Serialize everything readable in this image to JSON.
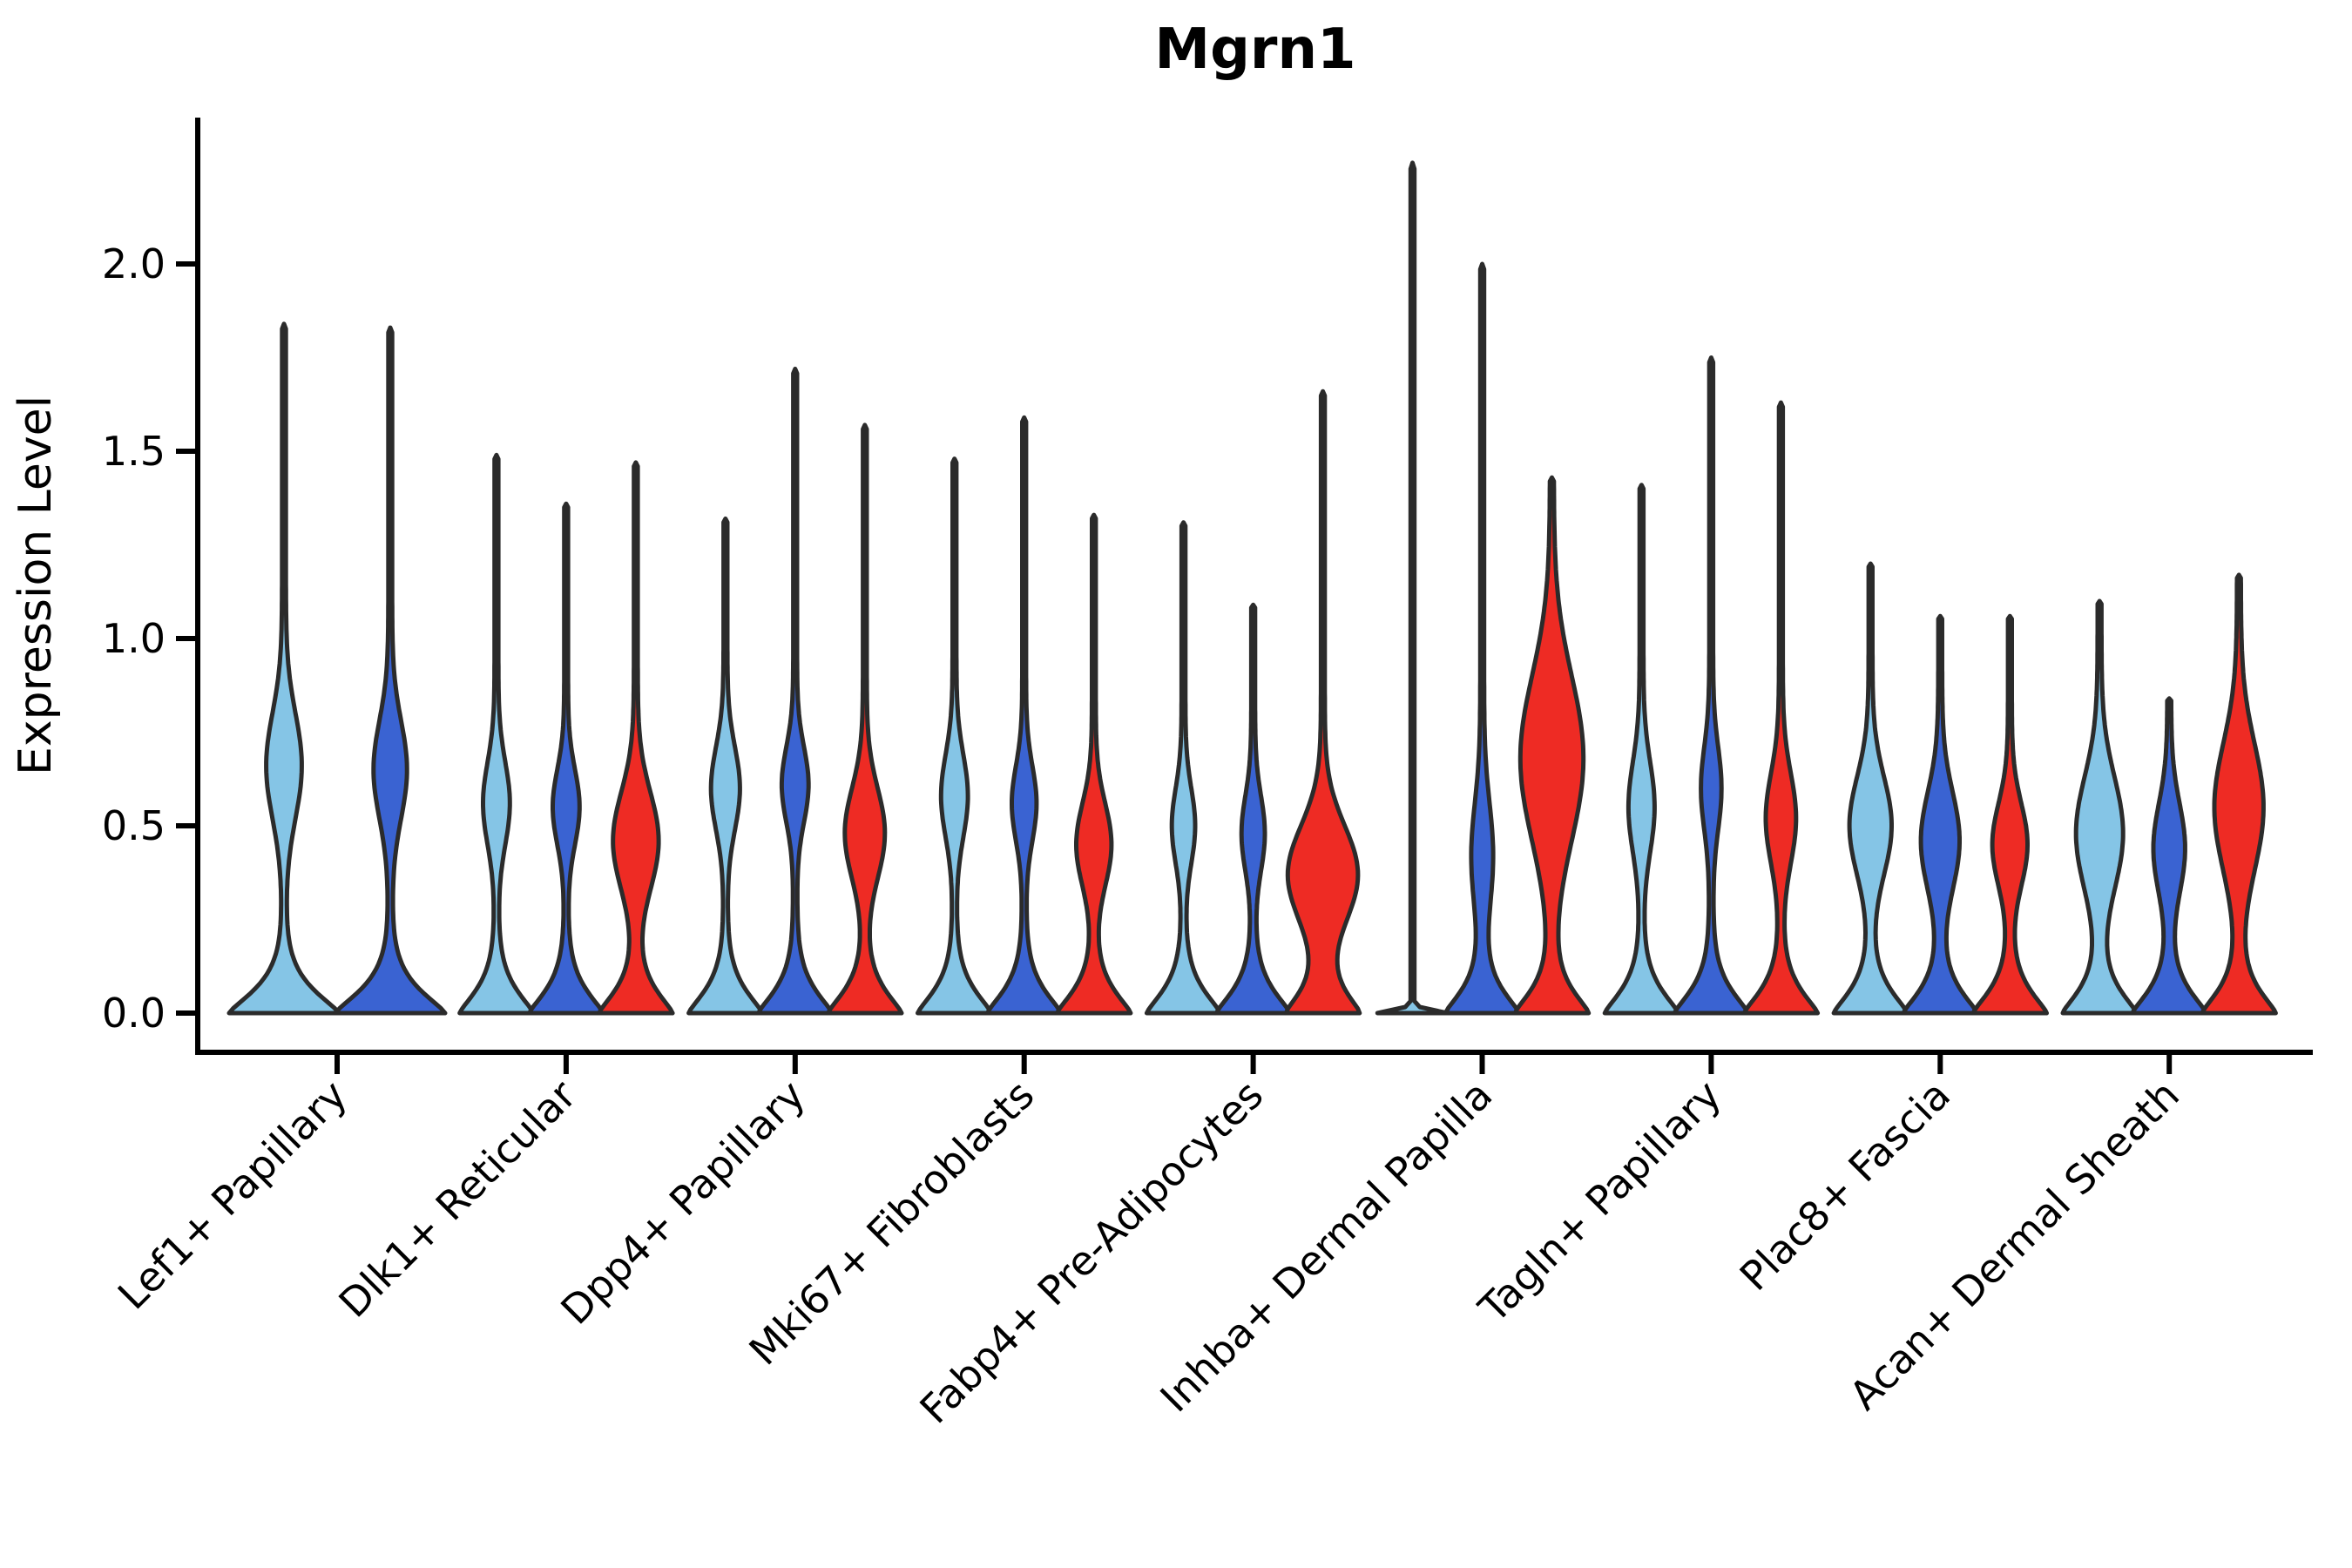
{
  "chart_data": {
    "type": "violin",
    "title": "Mgrn1",
    "xlabel": "",
    "ylabel": "Expression Level",
    "yticks": [
      "0.0",
      "0.5",
      "1.0",
      "1.5",
      "2.0"
    ],
    "ytick_values": [
      0.0,
      0.5,
      1.0,
      1.5,
      2.0
    ],
    "ylim": [
      -0.1,
      2.39
    ],
    "grid": false,
    "legend_position": "none",
    "outline_color": "#2b2b2b",
    "categories": [
      "Lef1+ Papillary",
      "Dlk1+ Reticular",
      "Dpp4+ Papillary",
      "Mki67+ Fibroblasts",
      "Fabp4+ Pre-Adipocytes",
      "Inhba+ Dermal Papilla",
      "Tagln+ Papillary",
      "Plac8+ Fascia",
      "Acan+ Dermal Sheath"
    ],
    "splits": [
      {
        "name": "split-light-blue",
        "color": "#85C5E6"
      },
      {
        "name": "split-royal-blue",
        "color": "#3A63D2"
      },
      {
        "name": "split-red",
        "color": "#EE2B24"
      }
    ],
    "violins": [
      {
        "category": "Lef1+ Papillary",
        "split": 0,
        "max_expression": 1.84,
        "bulge_center": 0.66,
        "bulge_spread": 0.14,
        "bulge_width_frac": 0.3,
        "relative_width": 1.52,
        "thin_line": false
      },
      {
        "category": "Lef1+ Papillary",
        "split": 1,
        "max_expression": 1.83,
        "bulge_center": 0.65,
        "bulge_spread": 0.13,
        "bulge_width_frac": 0.28,
        "relative_width": 1.52,
        "thin_line": false
      },
      {
        "category": "Dlk1+ Reticular",
        "split": 0,
        "max_expression": 1.49,
        "bulge_center": 0.56,
        "bulge_spread": 0.11,
        "bulge_width_frac": 0.33,
        "relative_width": 1.0,
        "thin_line": false
      },
      {
        "category": "Dlk1+ Reticular",
        "split": 1,
        "max_expression": 1.36,
        "bulge_center": 0.55,
        "bulge_spread": 0.1,
        "bulge_width_frac": 0.33,
        "relative_width": 1.0,
        "thin_line": false
      },
      {
        "category": "Dlk1+ Reticular",
        "split": 2,
        "max_expression": 1.47,
        "bulge_center": 0.46,
        "bulge_spread": 0.13,
        "bulge_width_frac": 0.6,
        "relative_width": 1.0,
        "thin_line": false
      },
      {
        "category": "Dpp4+ Papillary",
        "split": 0,
        "max_expression": 1.32,
        "bulge_center": 0.6,
        "bulge_spread": 0.11,
        "bulge_width_frac": 0.36,
        "relative_width": 1.0,
        "thin_line": false
      },
      {
        "category": "Dpp4+ Papillary",
        "split": 1,
        "max_expression": 1.72,
        "bulge_center": 0.61,
        "bulge_spread": 0.1,
        "bulge_width_frac": 0.33,
        "relative_width": 1.0,
        "thin_line": false
      },
      {
        "category": "Dpp4+ Papillary",
        "split": 2,
        "max_expression": 1.57,
        "bulge_center": 0.48,
        "bulge_spread": 0.12,
        "bulge_width_frac": 0.52,
        "relative_width": 1.0,
        "thin_line": false
      },
      {
        "category": "Mki67+ Fibroblasts",
        "split": 0,
        "max_expression": 1.48,
        "bulge_center": 0.58,
        "bulge_spread": 0.11,
        "bulge_width_frac": 0.33,
        "relative_width": 1.0,
        "thin_line": false
      },
      {
        "category": "Mki67+ Fibroblasts",
        "split": 1,
        "max_expression": 1.59,
        "bulge_center": 0.56,
        "bulge_spread": 0.1,
        "bulge_width_frac": 0.3,
        "relative_width": 1.0,
        "thin_line": false
      },
      {
        "category": "Mki67+ Fibroblasts",
        "split": 2,
        "max_expression": 1.33,
        "bulge_center": 0.45,
        "bulge_spread": 0.11,
        "bulge_width_frac": 0.45,
        "relative_width": 1.0,
        "thin_line": false
      },
      {
        "category": "Fabp4+ Pre-Adipocytes",
        "split": 0,
        "max_expression": 1.31,
        "bulge_center": 0.5,
        "bulge_spread": 0.1,
        "bulge_width_frac": 0.28,
        "relative_width": 1.0,
        "thin_line": false
      },
      {
        "category": "Fabp4+ Pre-Adipocytes",
        "split": 1,
        "max_expression": 1.09,
        "bulge_center": 0.48,
        "bulge_spread": 0.1,
        "bulge_width_frac": 0.28,
        "relative_width": 1.0,
        "thin_line": false
      },
      {
        "category": "Fabp4+ Pre-Adipocytes",
        "split": 2,
        "max_expression": 1.66,
        "bulge_center": 0.37,
        "bulge_spread": 0.13,
        "bulge_width_frac": 0.95,
        "relative_width": 1.0,
        "thin_line": false
      },
      {
        "category": "Inhba+ Dermal Papilla",
        "split": 0,
        "max_expression": 2.27,
        "bulge_center": 0.5,
        "bulge_spread": 0.1,
        "bulge_width_frac": 0.0,
        "relative_width": 0.95,
        "thin_line": true
      },
      {
        "category": "Inhba+ Dermal Papilla",
        "split": 1,
        "max_expression": 2.0,
        "bulge_center": 0.42,
        "bulge_spread": 0.14,
        "bulge_width_frac": 0.26,
        "relative_width": 1.0,
        "thin_line": false
      },
      {
        "category": "Inhba+ Dermal Papilla",
        "split": 2,
        "max_expression": 1.43,
        "bulge_center": 0.68,
        "bulge_spread": 0.22,
        "bulge_width_frac": 0.85,
        "relative_width": 1.0,
        "thin_line": false
      },
      {
        "category": "Tagln+ Papillary",
        "split": 0,
        "max_expression": 1.41,
        "bulge_center": 0.55,
        "bulge_spread": 0.12,
        "bulge_width_frac": 0.32,
        "relative_width": 1.0,
        "thin_line": false
      },
      {
        "category": "Tagln+ Papillary",
        "split": 1,
        "max_expression": 1.75,
        "bulge_center": 0.6,
        "bulge_spread": 0.11,
        "bulge_width_frac": 0.24,
        "relative_width": 1.0,
        "thin_line": false
      },
      {
        "category": "Tagln+ Papillary",
        "split": 2,
        "max_expression": 1.63,
        "bulge_center": 0.52,
        "bulge_spread": 0.12,
        "bulge_width_frac": 0.38,
        "relative_width": 1.0,
        "thin_line": false
      },
      {
        "category": "Plac8+ Fascia",
        "split": 0,
        "max_expression": 1.2,
        "bulge_center": 0.5,
        "bulge_spread": 0.13,
        "bulge_width_frac": 0.55,
        "relative_width": 1.0,
        "thin_line": false
      },
      {
        "category": "Plac8+ Fascia",
        "split": 1,
        "max_expression": 1.06,
        "bulge_center": 0.46,
        "bulge_spread": 0.13,
        "bulge_width_frac": 0.5,
        "relative_width": 1.0,
        "thin_line": false
      },
      {
        "category": "Plac8+ Fascia",
        "split": 2,
        "max_expression": 1.06,
        "bulge_center": 0.45,
        "bulge_spread": 0.11,
        "bulge_width_frac": 0.45,
        "relative_width": 1.0,
        "thin_line": false
      },
      {
        "category": "Acan+ Dermal Sheath",
        "split": 0,
        "max_expression": 1.1,
        "bulge_center": 0.48,
        "bulge_spread": 0.15,
        "bulge_width_frac": 0.62,
        "relative_width": 1.0,
        "thin_line": false
      },
      {
        "category": "Acan+ Dermal Sheath",
        "split": 1,
        "max_expression": 0.84,
        "bulge_center": 0.44,
        "bulge_spread": 0.12,
        "bulge_width_frac": 0.4,
        "relative_width": 1.0,
        "thin_line": false
      },
      {
        "category": "Acan+ Dermal Sheath",
        "split": 2,
        "max_expression": 1.17,
        "bulge_center": 0.55,
        "bulge_spread": 0.17,
        "bulge_width_frac": 0.65,
        "relative_width": 1.0,
        "thin_line": false
      }
    ]
  }
}
